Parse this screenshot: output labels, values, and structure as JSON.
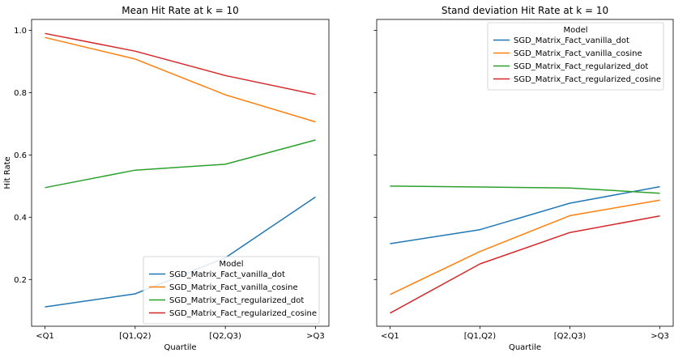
{
  "chart_data": [
    {
      "type": "line",
      "title": "Mean Hit Rate at k = 10",
      "xlabel": "Quartile",
      "ylabel": "Hit Rate",
      "categories": [
        "<Q1",
        "[Q1,Q2)",
        "[Q2,Q3)",
        ">Q3"
      ],
      "ylim": [
        0.05,
        1.035
      ],
      "yticks": [
        "0.2",
        "0.4",
        "0.6",
        "0.8",
        "1.0"
      ],
      "legend_title": "Model",
      "legend_position": "lower-right",
      "series": [
        {
          "name": "SGD_Matrix_Fact_vanilla_dot",
          "color": "#1f77b4",
          "values": [
            0.112,
            0.154,
            0.27,
            0.465
          ]
        },
        {
          "name": "SGD_Matrix_Fact_vanilla_cosine",
          "color": "#ff7f0e",
          "values": [
            0.977,
            0.908,
            0.793,
            0.706
          ]
        },
        {
          "name": "SGD_Matrix_Fact_regularized_dot",
          "color": "#2ca02c",
          "values": [
            0.495,
            0.551,
            0.57,
            0.648
          ]
        },
        {
          "name": "SGD_Matrix_Fact_regularized_cosine",
          "color": "#d62728",
          "values": [
            0.99,
            0.933,
            0.855,
            0.794
          ]
        }
      ]
    },
    {
      "type": "line",
      "title": "Stand deviation Hit Rate at k = 10",
      "xlabel": "Quartile",
      "ylabel": "",
      "categories": [
        "<Q1",
        "[Q1,Q2)",
        "[Q2,Q3)",
        ">Q3"
      ],
      "ylim": [
        0.05,
        1.035
      ],
      "yticks": [],
      "legend_title": "Model",
      "legend_position": "upper-right",
      "series": [
        {
          "name": "SGD_Matrix_Fact_vanilla_dot",
          "color": "#1f77b4",
          "values": [
            0.315,
            0.36,
            0.445,
            0.498
          ]
        },
        {
          "name": "SGD_Matrix_Fact_vanilla_cosine",
          "color": "#ff7f0e",
          "values": [
            0.152,
            0.29,
            0.405,
            0.455
          ]
        },
        {
          "name": "SGD_Matrix_Fact_regularized_dot",
          "color": "#2ca02c",
          "values": [
            0.5,
            0.497,
            0.494,
            0.477
          ]
        },
        {
          "name": "SGD_Matrix_Fact_regularized_cosine",
          "color": "#d62728",
          "values": [
            0.092,
            0.25,
            0.351,
            0.404
          ]
        }
      ]
    }
  ]
}
